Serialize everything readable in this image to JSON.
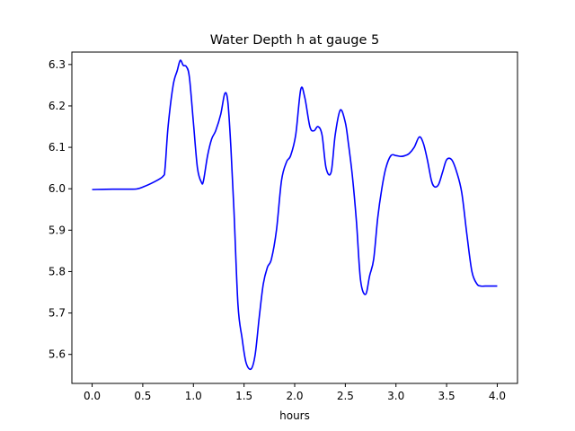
{
  "chart_data": {
    "type": "line",
    "title": "Water Depth h at gauge 5",
    "xlabel": "hours",
    "ylabel": "",
    "xlim": [
      -0.2,
      4.2
    ],
    "ylim": [
      5.53,
      6.33
    ],
    "xticks": [
      0.0,
      0.5,
      1.0,
      1.5,
      2.0,
      2.5,
      3.0,
      3.5,
      4.0
    ],
    "xtick_labels": [
      "0.0",
      "0.5",
      "1.0",
      "1.5",
      "2.0",
      "2.5",
      "3.0",
      "3.5",
      "4.0"
    ],
    "yticks": [
      5.6,
      5.7,
      5.8,
      5.9,
      6.0,
      6.1,
      6.2,
      6.3
    ],
    "ytick_labels": [
      "5.6",
      "5.7",
      "5.8",
      "5.9",
      "6.0",
      "6.1",
      "6.2",
      "6.3"
    ],
    "grid": false,
    "series": [
      {
        "color": "#0000ff",
        "x": [
          0.0,
          0.2,
          0.4,
          0.45,
          0.5,
          0.6,
          0.7,
          0.72,
          0.75,
          0.8,
          0.84,
          0.87,
          0.9,
          0.93,
          0.96,
          1.0,
          1.04,
          1.08,
          1.1,
          1.14,
          1.18,
          1.22,
          1.27,
          1.31,
          1.34,
          1.37,
          1.4,
          1.44,
          1.48,
          1.52,
          1.57,
          1.61,
          1.65,
          1.69,
          1.73,
          1.77,
          1.82,
          1.87,
          1.92,
          1.96,
          2.01,
          2.06,
          2.1,
          2.15,
          2.19,
          2.23,
          2.27,
          2.31,
          2.36,
          2.4,
          2.45,
          2.5,
          2.53,
          2.57,
          2.61,
          2.65,
          2.7,
          2.74,
          2.78,
          2.82,
          2.86,
          2.9,
          2.95,
          3.0,
          3.05,
          3.09,
          3.13,
          3.18,
          3.23,
          3.27,
          3.31,
          3.35,
          3.38,
          3.42,
          3.46,
          3.5,
          3.55,
          3.6,
          3.65,
          3.7,
          3.75,
          3.8,
          3.84,
          3.88,
          3.92,
          3.96,
          4.0
        ],
        "y": [
          5.998,
          5.999,
          5.999,
          6.0,
          6.004,
          6.015,
          6.03,
          6.05,
          6.15,
          6.25,
          6.285,
          6.31,
          6.298,
          6.295,
          6.27,
          6.16,
          6.05,
          6.015,
          6.02,
          6.08,
          6.12,
          6.14,
          6.18,
          6.23,
          6.21,
          6.1,
          5.95,
          5.72,
          5.64,
          5.58,
          5.565,
          5.6,
          5.69,
          5.77,
          5.81,
          5.83,
          5.9,
          6.02,
          6.065,
          6.08,
          6.13,
          6.24,
          6.22,
          6.15,
          6.14,
          6.15,
          6.13,
          6.05,
          6.04,
          6.13,
          6.19,
          6.16,
          6.11,
          6.03,
          5.92,
          5.78,
          5.745,
          5.79,
          5.83,
          5.93,
          6.0,
          6.05,
          6.08,
          6.08,
          6.078,
          6.08,
          6.085,
          6.1,
          6.125,
          6.11,
          6.07,
          6.02,
          6.005,
          6.01,
          6.04,
          6.07,
          6.07,
          6.04,
          5.99,
          5.89,
          5.8,
          5.77,
          5.765,
          5.765,
          5.765,
          5.765,
          5.765
        ]
      }
    ]
  }
}
